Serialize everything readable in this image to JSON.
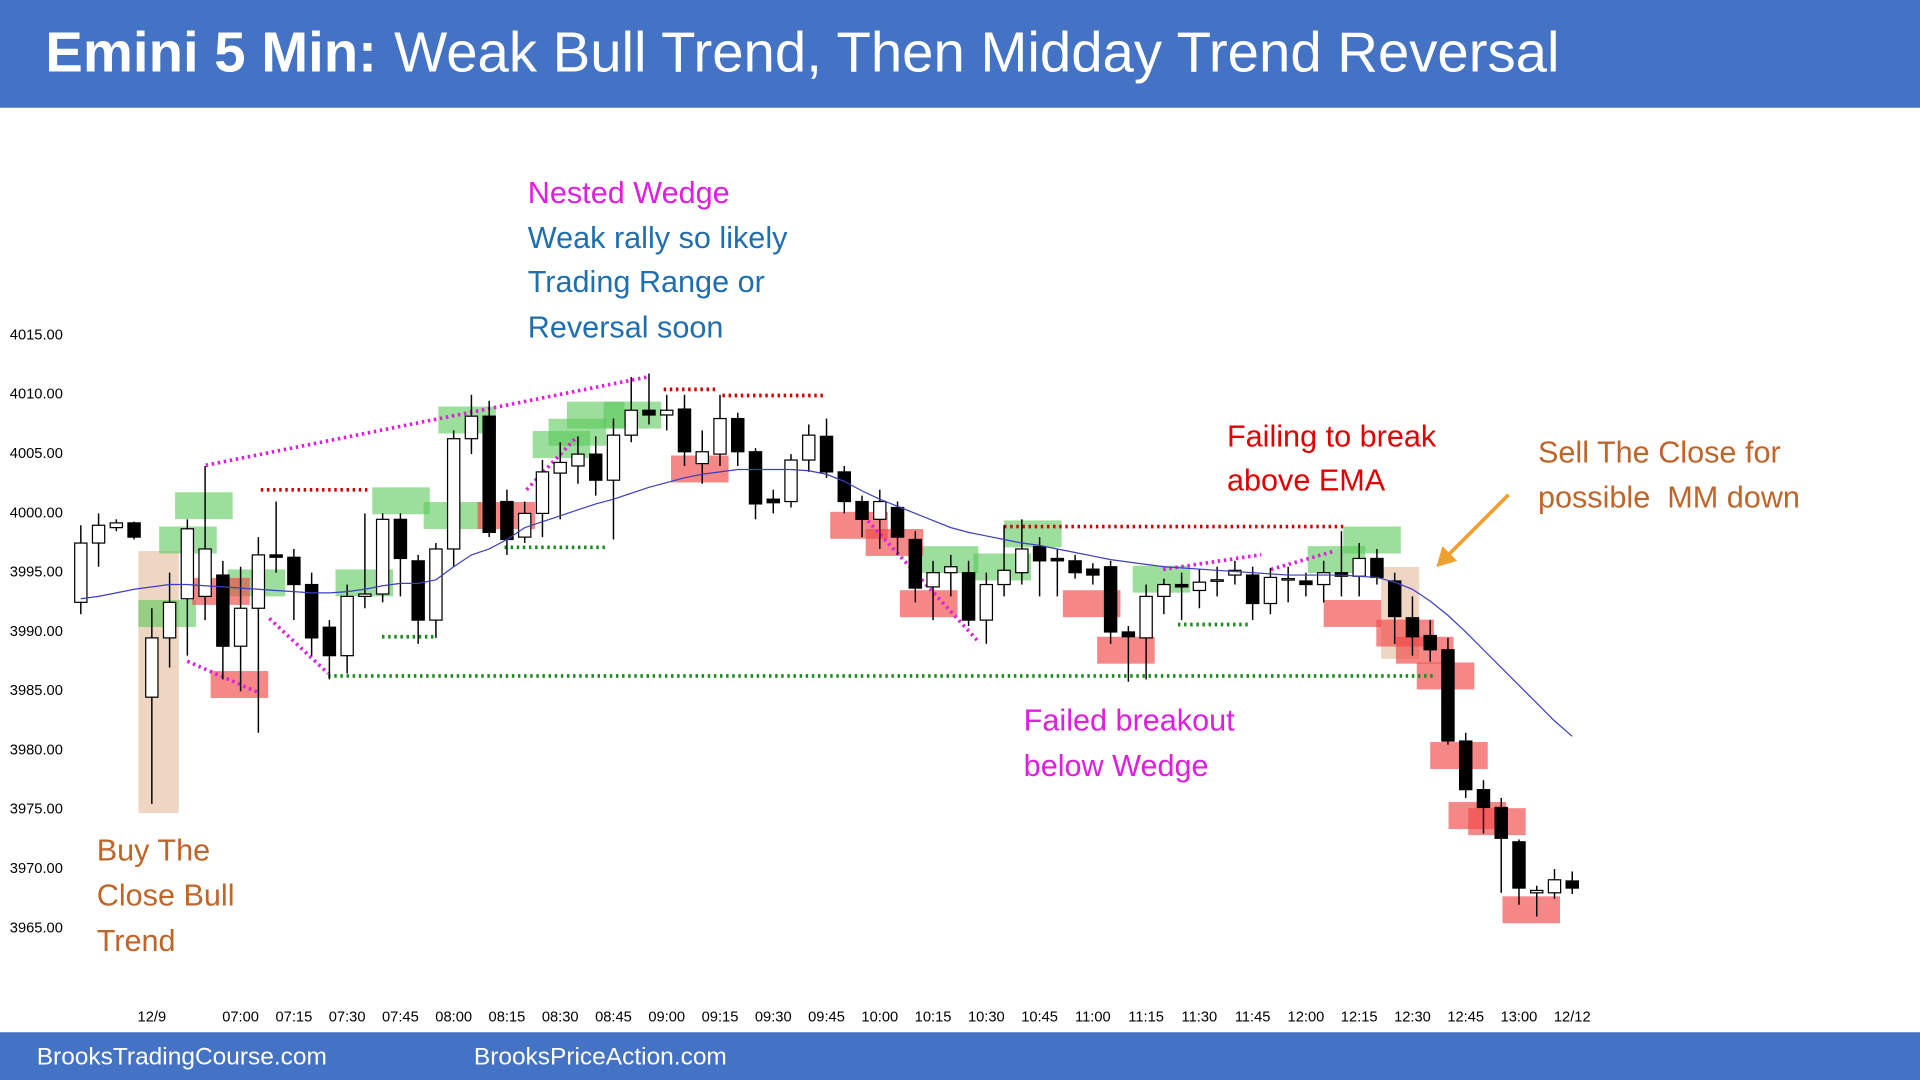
{
  "chart_data": {
    "type": "candlestick",
    "title": "Emini 5 Min:",
    "subtitle": "Weak Bull Trend, Then Midday Trend Reversal",
    "up_color": "#ffffff",
    "down_color": "#000000",
    "categories": [
      null,
      null,
      null,
      null,
      "12/9",
      null,
      null,
      null,
      null,
      "07:00",
      null,
      null,
      "07:15",
      null,
      null,
      "07:30",
      null,
      null,
      "07:45",
      null,
      null,
      "08:00",
      null,
      null,
      "08:15",
      null,
      null,
      "08:30",
      null,
      null,
      "08:45",
      null,
      null,
      "09:00",
      null,
      null,
      "09:15",
      null,
      null,
      "09:30",
      null,
      null,
      "09:45",
      null,
      null,
      "10:00",
      null,
      null,
      "10:15",
      null,
      null,
      "10:30",
      null,
      null,
      "10:45",
      null,
      null,
      "11:00",
      null,
      null,
      "11:15",
      null,
      null,
      "11:30",
      null,
      null,
      "11:45",
      null,
      null,
      "12:00",
      null,
      null,
      "12:15",
      null,
      null,
      "12:30",
      null,
      null,
      "12:45",
      null,
      null,
      "13:00",
      null,
      null,
      "12/12"
    ],
    "ohlc": [
      [
        3992.5,
        3999,
        3991.5,
        3997.5
      ],
      [
        3997.5,
        4000,
        3995.5,
        3999
      ],
      [
        3998.8,
        3999.5,
        3998.5,
        3999.2
      ],
      [
        3999.2,
        3999.3,
        3997.8,
        3998
      ],
      [
        3984.5,
        3992,
        3975.5,
        3989.5
      ],
      [
        3989.5,
        3995,
        3987,
        3992.5
      ],
      [
        3992.8,
        3999.5,
        3988,
        3998.7
      ],
      [
        3993,
        4004,
        3991,
        3997
      ],
      [
        3994.8,
        3996,
        3986,
        3988.8
      ],
      [
        3988.8,
        3995.5,
        3985,
        3992
      ],
      [
        3992,
        3998,
        3981.5,
        3996.5
      ],
      [
        3996.5,
        4001,
        3995,
        3996.3
      ],
      [
        3996.3,
        3997,
        3991,
        3994
      ],
      [
        3994,
        3995,
        3988,
        3989.5
      ],
      [
        3990.4,
        3991,
        3986,
        3988
      ],
      [
        3988,
        3994,
        3986.5,
        3993
      ],
      [
        3993,
        4000,
        3992,
        3993.2
      ],
      [
        3993.2,
        4000,
        3992.5,
        3999.5
      ],
      [
        3999.5,
        4000,
        3993,
        3996.2
      ],
      [
        3996,
        3996.5,
        3989,
        3991
      ],
      [
        3991,
        3997.5,
        3989.5,
        3997
      ],
      [
        3997,
        4007,
        3995.5,
        4006.3
      ],
      [
        4006.3,
        4010,
        4005,
        4008.2
      ],
      [
        4008.2,
        4009.5,
        3998,
        3998.4
      ],
      [
        4001,
        4002,
        3996.5,
        3997.8
      ],
      [
        3998,
        4001,
        3997.5,
        4000
      ],
      [
        4000,
        4004.5,
        3998,
        4003.5
      ],
      [
        4003.4,
        4006,
        3999.5,
        4004.3
      ],
      [
        4004,
        4006.5,
        4002.5,
        4005
      ],
      [
        4005,
        4006.5,
        4001.5,
        4002.8
      ],
      [
        4002.8,
        4008,
        3997.8,
        4006.6
      ],
      [
        4006.6,
        4011.5,
        4006,
        4008.7
      ],
      [
        4008.7,
        4011.8,
        4007.5,
        4008.3
      ],
      [
        4008.3,
        4010,
        4007,
        4008.7
      ],
      [
        4008.8,
        4010,
        4004,
        4005.2
      ],
      [
        4004.2,
        4007,
        4002.5,
        4005.2
      ],
      [
        4005,
        4010,
        4004,
        4008
      ],
      [
        4008,
        4008.5,
        4004,
        4005.2
      ],
      [
        4005.2,
        4005.5,
        3999.5,
        4000.8
      ],
      [
        4001.2,
        4002,
        4000,
        4000.9
      ],
      [
        4001,
        4005,
        4000.5,
        4004.5
      ],
      [
        4004.5,
        4007.5,
        4003.5,
        4006.6
      ],
      [
        4006.5,
        4008,
        4003,
        4003.5
      ],
      [
        4003.5,
        4004,
        4000,
        4001
      ],
      [
        4001,
        4001.5,
        3998,
        3999.5
      ],
      [
        3999.5,
        4002,
        3997,
        4001
      ],
      [
        4000.5,
        4001,
        3996.5,
        3998
      ],
      [
        3997.8,
        3998.5,
        3992.5,
        3993.7
      ],
      [
        3993.8,
        3996,
        3991,
        3995
      ],
      [
        3995,
        3996.5,
        3993,
        3995.5
      ],
      [
        3995,
        3996,
        3990.5,
        3991
      ],
      [
        3991,
        3995,
        3989,
        3994
      ],
      [
        3994,
        3999,
        3993,
        3995.2
      ],
      [
        3995,
        3999.5,
        3994,
        3997
      ],
      [
        3997.2,
        3998,
        3993,
        3996
      ],
      [
        3996.2,
        3997,
        3993,
        3996
      ],
      [
        3996,
        3996.5,
        3994.5,
        3995
      ],
      [
        3995.3,
        3995.8,
        3994,
        3994.8
      ],
      [
        3995.5,
        3996,
        3989,
        3990
      ],
      [
        3990,
        3990.5,
        3985.8,
        3989.6
      ],
      [
        3989.5,
        3994,
        3986,
        3993
      ],
      [
        3993,
        3994.5,
        3991.5,
        3994
      ],
      [
        3994,
        3995,
        3991,
        3993.8
      ],
      [
        3993.5,
        3995.3,
        3992,
        3994.2
      ],
      [
        3994.3,
        3995.5,
        3993,
        3994.4
      ],
      [
        3994.8,
        3996,
        3994,
        3995.2
      ],
      [
        3994.8,
        3995.5,
        3991,
        3992.4
      ],
      [
        3992.4,
        3995.4,
        3991.5,
        3994.6
      ],
      [
        3994.4,
        3995.5,
        3992.5,
        3994.5
      ],
      [
        3994.3,
        3995,
        3993,
        3994
      ],
      [
        3994,
        3996,
        3992.5,
        3995
      ],
      [
        3995,
        3998.5,
        3993,
        3994.7
      ],
      [
        3994.7,
        3997.5,
        3993,
        3996.2
      ],
      [
        3996.2,
        3997,
        3994,
        3994.6
      ],
      [
        3994.3,
        3995,
        3989,
        3991.3
      ],
      [
        3991.2,
        3993,
        3988,
        3989.6
      ],
      [
        3989.7,
        3991,
        3987.5,
        3988.5
      ],
      [
        3988.5,
        3989.5,
        3980.5,
        3980.8
      ],
      [
        3980.8,
        3981.5,
        3976,
        3976.7
      ],
      [
        3976.7,
        3977.5,
        3973,
        3975.2
      ],
      [
        3975.2,
        3976,
        3968,
        3972.6
      ],
      [
        3972.3,
        3972.5,
        3967,
        3968.4
      ],
      [
        3968,
        3968.6,
        3966,
        3968.2
      ],
      [
        3968,
        3970,
        3967.5,
        3969.1
      ],
      [
        3969,
        3969.8,
        3967.9,
        3968.4
      ]
    ],
    "ema": {
      "color": "#3b3fc0",
      "values": [
        3992.8,
        3993,
        3993.3,
        3993.6,
        3993.8,
        3994,
        3994,
        3993.9,
        3993.8,
        3993.7,
        3993.6,
        3993.5,
        3993.4,
        3993.3,
        3993.3,
        3993.4,
        3993.6,
        3993.9,
        3994.1,
        3994.1,
        3994.4,
        3995.5,
        3996.5,
        3997,
        3997.8,
        3998.8,
        3999.3,
        3999.8,
        4000.3,
        4000.8,
        4001.2,
        4001.7,
        4002.2,
        4002.6,
        4003,
        4003.3,
        4003.5,
        4003.7,
        4003.7,
        4003.7,
        4003.7,
        4003.6,
        4003.3,
        4002.7,
        4001.9,
        4001.2,
        4000.6,
        4000,
        3999.4,
        3998.8,
        3998.4,
        3998.1,
        3997.8,
        3997.5,
        3997.3,
        3997,
        3996.7,
        3996.4,
        3996.1,
        3995.9,
        3995.7,
        3995.5,
        3995.4,
        3995.3,
        3995.2,
        3995.1,
        3995,
        3994.9,
        3994.8,
        3994.8,
        3994.8,
        3994.8,
        3994.7,
        3994.6,
        3994.2,
        3993.6,
        3992.6,
        3991.4,
        3990,
        3988.5,
        3987,
        3985.5,
        3984,
        3982.5,
        3981.2
      ]
    },
    "ylim": [
      3960,
      4025
    ],
    "yticks": [
      {
        "value": 3965,
        "label": "3965.00"
      },
      {
        "value": 3970,
        "label": "3970.00"
      },
      {
        "value": 3975,
        "label": "3975.00"
      },
      {
        "value": 3980,
        "label": "3980.00"
      },
      {
        "value": 3985,
        "label": "3985.00"
      },
      {
        "value": 3990,
        "label": "3990.00"
      },
      {
        "value": 3995,
        "label": "3995.00"
      },
      {
        "value": 4000,
        "label": "4000.00"
      },
      {
        "value": 4005,
        "label": "4005.00"
      },
      {
        "value": 4010,
        "label": "4010.00"
      },
      {
        "value": 4015,
        "label": "4015.00"
      }
    ],
    "grid": false,
    "annotations": [
      {
        "lines": [
          "Nested Wedge"
        ],
        "color": "#e01ee0"
      },
      {
        "lines": [
          "Weak rally so likely",
          "Trading Range or",
          "Reversal soon"
        ],
        "color": "#1f6fb0"
      },
      {
        "lines": [
          "Failing to break",
          "above EMA"
        ],
        "color": "#e00000"
      },
      {
        "lines": [
          "Sell The Close for",
          "possible  MM down"
        ],
        "color": "#c0652a"
      },
      {
        "lines": [
          "Failed breakout",
          "below Wedge"
        ],
        "color": "#e01ee0"
      },
      {
        "lines": [
          "Buy The",
          "Close Bull",
          "Trend"
        ],
        "color": "#c0652a"
      }
    ]
  },
  "footer": [
    "BrooksTradingCourse.com",
    "BrooksPriceAction.com"
  ]
}
